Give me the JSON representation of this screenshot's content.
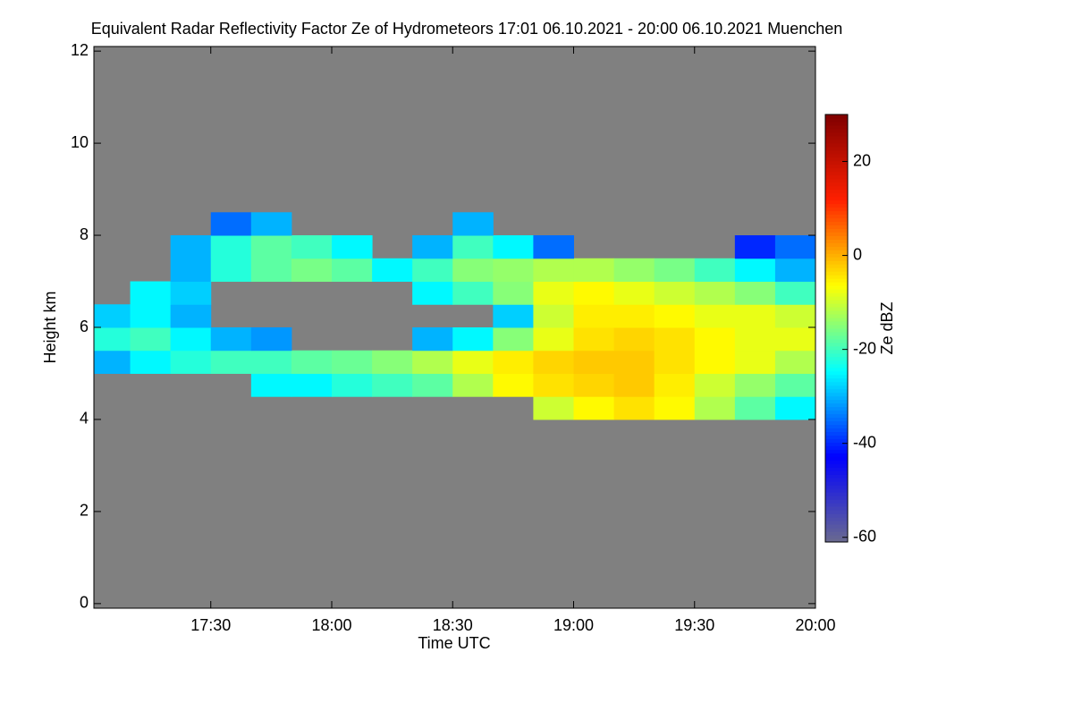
{
  "chart_data": {
    "type": "heatmap",
    "title": "Equivalent Radar Reflectivity Factor Ze of Hydrometeors   17:01 06.10.2021 - 20:00 06.10.2021 Muenchen",
    "x_label": "Time UTC",
    "y_label": "Height km",
    "colorbar_label": "Ze dBZ",
    "xlim": [
      17.0167,
      20.0
    ],
    "xticks": [
      {
        "value": 17.5,
        "label": "17:30"
      },
      {
        "value": 18.0,
        "label": "18:00"
      },
      {
        "value": 18.5,
        "label": "18:30"
      },
      {
        "value": 19.0,
        "label": "19:00"
      },
      {
        "value": 19.5,
        "label": "19:30"
      },
      {
        "value": 20.0,
        "label": "20:00"
      }
    ],
    "ylim": [
      -0.1,
      12.1
    ],
    "yticks": [
      0,
      2,
      4,
      6,
      8,
      10,
      12
    ],
    "zlim": [
      -61,
      30
    ],
    "zticks": [
      20,
      0,
      -20,
      -40,
      -60
    ],
    "background": "#808080",
    "colormap": [
      "#6b6b8f",
      "#0000ff",
      "#00ffff",
      "#ffff00",
      "#ff2000",
      "#800000"
    ],
    "x_bins": [
      17.0,
      17.1667,
      17.3333,
      17.5,
      17.6667,
      17.8333,
      18.0,
      18.1667,
      18.3333,
      18.5,
      18.6667,
      18.8333,
      19.0,
      19.1667,
      19.3333,
      19.5,
      19.6667,
      19.8333,
      20.0
    ],
    "y_bins": [
      3.5,
      4.0,
      4.5,
      5.0,
      5.5,
      6.0,
      6.5,
      7.0,
      7.5,
      8.0,
      8.5
    ],
    "z": [
      [
        null,
        null,
        null,
        null,
        null,
        null,
        null,
        null,
        null,
        null,
        null,
        null,
        null,
        null,
        null,
        null,
        null,
        null
      ],
      [
        null,
        null,
        null,
        null,
        null,
        null,
        null,
        null,
        null,
        null,
        null,
        -10,
        -6,
        -4,
        -6,
        -12,
        -18,
        -25
      ],
      [
        null,
        null,
        null,
        null,
        -25,
        -25,
        -22,
        -20,
        -18,
        -12,
        -6,
        -4,
        -3,
        -2,
        -5,
        -10,
        -14,
        -18
      ],
      [
        -30,
        -25,
        -22,
        -20,
        -20,
        -18,
        -17,
        -15,
        -12,
        -8,
        -5,
        -3,
        -2,
        -2,
        -4,
        -6,
        -8,
        -12
      ],
      [
        -22,
        -20,
        -25,
        -30,
        -32,
        null,
        null,
        null,
        -30,
        -25,
        -15,
        -8,
        -4,
        -3,
        -4,
        -6,
        -8,
        -8
      ],
      [
        -28,
        -25,
        -30,
        null,
        null,
        null,
        null,
        null,
        null,
        null,
        -28,
        -10,
        -5,
        -5,
        -6,
        -8,
        -8,
        -10
      ],
      [
        null,
        -25,
        -28,
        null,
        null,
        null,
        null,
        null,
        -25,
        -20,
        -15,
        -8,
        -6,
        -8,
        -10,
        -12,
        -15,
        -20
      ],
      [
        null,
        null,
        -30,
        -22,
        -18,
        -16,
        -18,
        -25,
        -20,
        -15,
        -14,
        -12,
        -12,
        -14,
        -16,
        -20,
        -25,
        -30
      ],
      [
        null,
        null,
        -30,
        -22,
        -18,
        -20,
        -25,
        null,
        -30,
        -20,
        -25,
        -35,
        null,
        null,
        null,
        null,
        -40,
        -35
      ],
      [
        null,
        null,
        null,
        -35,
        -30,
        null,
        null,
        null,
        null,
        -30,
        null,
        null,
        null,
        null,
        null,
        null,
        null,
        null
      ]
    ]
  }
}
